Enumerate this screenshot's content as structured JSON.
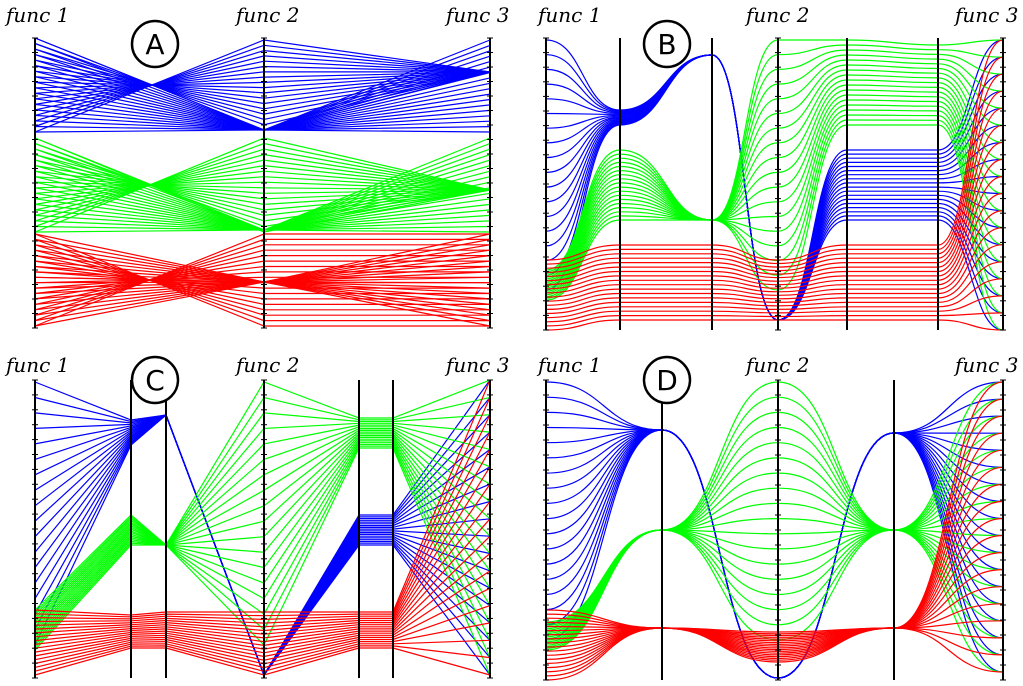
{
  "panels": [
    {
      "letter": "A",
      "axis_titles": [
        "func 1",
        "func 2",
        "func 3"
      ],
      "style": "straight polylines between 3 parallel axes",
      "groups": [
        {
          "color": "#0000ff",
          "name": ""
        },
        {
          "color": "#00ff00",
          "name": ""
        },
        {
          "color": "#ff0000",
          "name": ""
        }
      ]
    },
    {
      "letter": "B",
      "axis_titles": [
        "func 1",
        "func 2",
        "func 3"
      ],
      "style": "smooth curves with intermediate axes"
    },
    {
      "letter": "C",
      "axis_titles": [
        "func 1",
        "func 2",
        "func 3"
      ],
      "style": "straight polylines with intermediate axes"
    },
    {
      "letter": "D",
      "axis_titles": [
        "func 1",
        "func 2",
        "func 3"
      ],
      "style": "smooth curves"
    }
  ],
  "chart_data": [
    {
      "type": "parallel-coordinates",
      "panel": "A",
      "axes": [
        "func 1",
        "func 2",
        "func 3"
      ],
      "colors": {
        "blue": "#0000ff",
        "green": "#00ff00",
        "red": "#ff0000"
      },
      "lines_per_group": 18,
      "value_range": [
        0,
        1
      ]
    },
    {
      "type": "parallel-coordinates",
      "panel": "B",
      "axes": [
        "func 1",
        "func 2",
        "func 3"
      ],
      "colors": {
        "blue": "#0000ff",
        "green": "#00ff00",
        "red": "#ff0000"
      },
      "lines_per_group": 18,
      "value_range": [
        0,
        1
      ]
    },
    {
      "type": "parallel-coordinates",
      "panel": "C",
      "axes": [
        "func 1",
        "func 2",
        "func 3"
      ],
      "colors": {
        "blue": "#0000ff",
        "green": "#00ff00",
        "red": "#ff0000"
      },
      "lines_per_group": 18,
      "value_range": [
        0,
        1
      ]
    },
    {
      "type": "parallel-coordinates",
      "panel": "D",
      "axes": [
        "func 1",
        "func 2",
        "func 3"
      ],
      "colors": {
        "blue": "#0000ff",
        "green": "#00ff00",
        "red": "#ff0000"
      },
      "lines_per_group": 18,
      "value_range": [
        0,
        1
      ]
    }
  ]
}
